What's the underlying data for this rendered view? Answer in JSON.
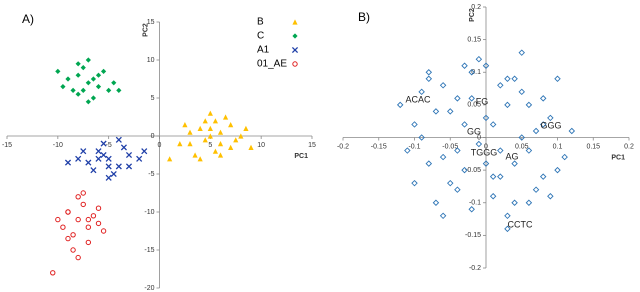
{
  "chart_data": [
    {
      "type": "scatter",
      "panel_label": "A)",
      "x_label": "PC1",
      "y_label": "PC2",
      "xlim": [
        -15,
        15
      ],
      "ylim": [
        -20,
        15
      ],
      "xticks": [
        -15,
        -10,
        -5,
        0,
        5,
        10,
        15
      ],
      "yticks": [
        15,
        10,
        5,
        0,
        -5,
        -10,
        -15,
        -20
      ],
      "legend": "top-right",
      "series": [
        {
          "name": "B",
          "color": "#ffc000",
          "marker": "triangle",
          "x": [
            5,
            4,
            6,
            3,
            7,
            5.5,
            4.5,
            2,
            8,
            6.5,
            3.5,
            5,
            4,
            7.5,
            6,
            2.5,
            9,
            5,
            3,
            6,
            4.5,
            8.5,
            1,
            5.5,
            7
          ],
          "y": [
            0,
            1,
            -1,
            0.5,
            1.5,
            -2,
            2,
            -1,
            0,
            2.5,
            -2.5,
            3,
            -3,
            -0.5,
            0.5,
            1.5,
            -1.5,
            1,
            -1,
            -2.5,
            -0.5,
            1,
            -3,
            2,
            -1.5
          ]
        },
        {
          "name": "C",
          "color": "#00a651",
          "marker": "diamond",
          "x": [
            -7,
            -8,
            -6,
            -9,
            -5,
            -7.5,
            -6.5,
            -8.5,
            -10,
            -4.5,
            -7,
            -6,
            -8,
            -5.5,
            -9.5,
            -7,
            -6.5,
            -8,
            -4,
            -7.5
          ],
          "y": [
            7,
            8,
            6.5,
            7.5,
            6,
            9,
            5,
            6,
            8.5,
            7,
            10,
            8,
            5.5,
            8.5,
            6.5,
            4.5,
            7.5,
            9.5,
            6,
            6
          ]
        },
        {
          "name": "A1",
          "color": "#1f3fa8",
          "marker": "x",
          "x": [
            -5,
            -6,
            -4,
            -7,
            -3,
            -5.5,
            -4.5,
            -8,
            -2,
            -6.5,
            -3.5,
            -5,
            -7.5,
            -4,
            -6,
            -1.5,
            -5,
            -9,
            -3,
            -5.5
          ],
          "y": [
            -3,
            -2,
            -4,
            -3.5,
            -2.5,
            -1,
            -5,
            -3,
            -3,
            -4.5,
            -1.5,
            -5.5,
            -2,
            -0.5,
            -3,
            -2,
            -4,
            -3.5,
            -4,
            -2.5
          ]
        },
        {
          "name": "01_AE",
          "color": "#e02020",
          "marker": "circle",
          "x": [
            -8,
            -9,
            -7,
            -8.5,
            -7.5,
            -6,
            -9.5,
            -8,
            -7,
            -10,
            -6.5,
            -8.5,
            -7.5,
            -9,
            -5.5,
            -8,
            -6,
            -9,
            -7,
            -10.5
          ],
          "y": [
            -11,
            -10,
            -12,
            -13,
            -9,
            -11.5,
            -12,
            -8,
            -14,
            -11,
            -10.5,
            -15,
            -7.5,
            -13.5,
            -12.5,
            -16,
            -9.5,
            -10,
            -11,
            -18
          ]
        }
      ]
    },
    {
      "type": "scatter",
      "panel_label": "B)",
      "x_label": "PC1",
      "y_label": "PC2",
      "xlim": [
        -0.2,
        0.2
      ],
      "ylim": [
        -0.2,
        0.2
      ],
      "xticks": [
        -0.2,
        -0.15,
        -0.1,
        -0.05,
        0,
        0.05,
        0.1,
        0.15,
        0.2
      ],
      "yticks": [
        0.2,
        0.15,
        0.1,
        0.05,
        0,
        -0.05,
        -0.1,
        -0.15,
        -0.2
      ],
      "annotations": [
        "ACAC",
        "FG",
        "GGG",
        "GG",
        "TGGG",
        "AG",
        "CCTC"
      ],
      "series": [
        {
          "color": "#2e75b6",
          "marker": "diamond-open",
          "x": [
            -0.12,
            -0.1,
            -0.08,
            -0.06,
            -0.04,
            -0.02,
            0,
            0.02,
            0.04,
            0.06,
            0.08,
            0.1,
            0.12,
            -0.11,
            -0.09,
            -0.07,
            -0.05,
            -0.03,
            -0.01,
            0.01,
            0.03,
            0.05,
            0.07,
            0.09,
            0.11,
            -0.1,
            -0.08,
            -0.06,
            -0.04,
            -0.02,
            0,
            0.02,
            0.04,
            0.06,
            0.08,
            0.1,
            -0.09,
            -0.07,
            -0.05,
            -0.03,
            -0.01,
            0.01,
            0.03,
            0.05,
            0.07,
            0.09,
            -0.06,
            -0.03,
            0,
            0.03,
            0.06,
            -0.04,
            0.02,
            0.05,
            -0.02,
            0.01,
            0.04,
            -0.08,
            0.08,
            0.03
          ],
          "y": [
            0.05,
            0.02,
            -0.04,
            0.08,
            -0.08,
            0.1,
            0.03,
            -0.06,
            0.09,
            -0.02,
            0.06,
            -0.05,
            0.01,
            -0.02,
            0.07,
            -0.1,
            0.04,
            -0.05,
            0.12,
            -0.09,
            0.05,
            0,
            -0.08,
            0.03,
            -0.03,
            -0.07,
            0.1,
            -0.03,
            0.06,
            -0.11,
            -0.04,
            0.08,
            -0.1,
            0.05,
            -0.06,
            0.09,
            0,
            0.04,
            -0.07,
            0.11,
            -0.01,
            0.02,
            -0.12,
            0.13,
            0.01,
            -0.09,
            -0.12,
            0.02,
            0.11,
            0.09,
            -0.1,
            -0.02,
            -0.02,
            0.07,
            0.06,
            -0.06,
            -0.04,
            0.09,
            0.02,
            -0.14
          ]
        }
      ]
    }
  ]
}
